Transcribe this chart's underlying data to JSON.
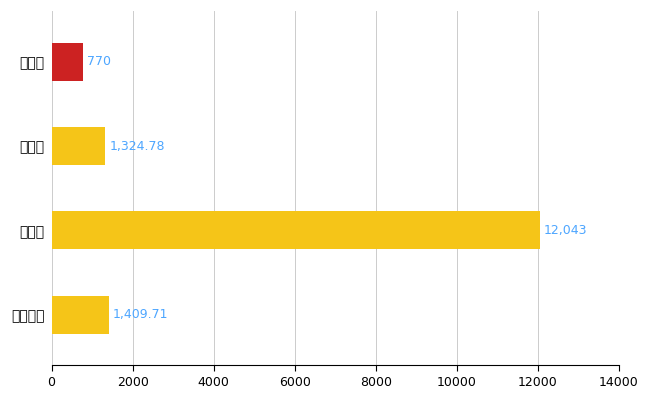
{
  "categories": [
    "八潮市",
    "県平均",
    "県最大",
    "全国平均"
  ],
  "values": [
    770,
    1324.78,
    12043,
    1409.71
  ],
  "bar_colors": [
    "#cc2222",
    "#f5c518",
    "#f5c518",
    "#f5c518"
  ],
  "value_labels": [
    "770",
    "1,324.78",
    "12,043",
    "1,409.71"
  ],
  "xlim": [
    0,
    14000
  ],
  "xticks": [
    0,
    2000,
    4000,
    6000,
    8000,
    10000,
    12000,
    14000
  ],
  "label_color": "#4da6ff",
  "grid_color": "#cccccc",
  "background_color": "#ffffff",
  "bar_height": 0.45,
  "label_fontsize": 9,
  "tick_fontsize": 9,
  "ytick_fontsize": 10
}
